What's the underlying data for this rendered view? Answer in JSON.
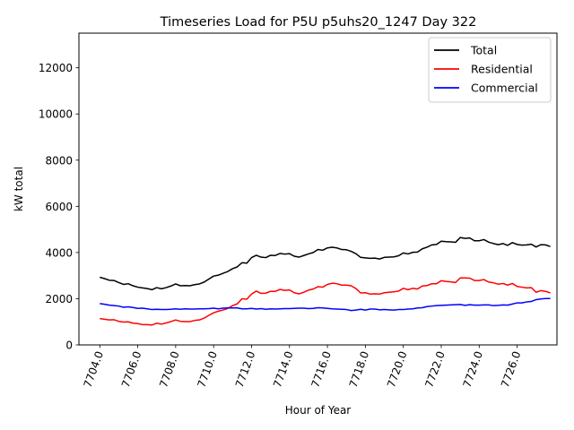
{
  "chart_data": {
    "type": "line",
    "title": "Timeseries Load for P5U p5uhs20_1247  Day 322",
    "xlabel": "Hour of Year",
    "ylabel": "kW total",
    "xlim": [
      7702.9,
      7728.1
    ],
    "ylim": [
      0,
      13500
    ],
    "xticks": [
      7704,
      7706,
      7708,
      7710,
      7712,
      7714,
      7716,
      7718,
      7720,
      7722,
      7724,
      7726
    ],
    "xtick_labels": [
      "7704.0",
      "7706.0",
      "7708.0",
      "7710.0",
      "7712.0",
      "7714.0",
      "7716.0",
      "7718.0",
      "7720.0",
      "7722.0",
      "7724.0",
      "7726.0"
    ],
    "yticks": [
      0,
      2000,
      4000,
      6000,
      8000,
      10000,
      12000
    ],
    "ytick_labels": [
      "0",
      "2000",
      "4000",
      "6000",
      "8000",
      "10000",
      "12000"
    ],
    "legend_position": "top-right",
    "x": [
      7704.0,
      7704.25,
      7704.5,
      7704.75,
      7705.0,
      7705.25,
      7705.5,
      7705.75,
      7706.0,
      7706.25,
      7706.5,
      7706.75,
      7707.0,
      7707.25,
      7707.5,
      7707.75,
      7708.0,
      7708.25,
      7708.5,
      7708.75,
      7709.0,
      7709.25,
      7709.5,
      7709.75,
      7710.0,
      7710.25,
      7710.5,
      7710.75,
      7711.0,
      7711.25,
      7711.5,
      7711.75,
      7712.0,
      7712.25,
      7712.5,
      7712.75,
      7713.0,
      7713.25,
      7713.5,
      7713.75,
      7714.0,
      7714.25,
      7714.5,
      7714.75,
      7715.0,
      7715.25,
      7715.5,
      7715.75,
      7716.0,
      7716.25,
      7716.5,
      7716.75,
      7717.0,
      7717.25,
      7717.5,
      7717.75,
      7718.0,
      7718.25,
      7718.5,
      7718.75,
      7719.0,
      7719.25,
      7719.5,
      7719.75,
      7720.0,
      7720.25,
      7720.5,
      7720.75,
      7721.0,
      7721.25,
      7721.5,
      7721.75,
      7722.0,
      7722.25,
      7722.5,
      7722.75,
      7723.0,
      7723.25,
      7723.5,
      7723.75,
      7724.0,
      7724.25,
      7724.5,
      7724.75,
      7725.0,
      7725.25,
      7725.5,
      7725.75,
      7726.0,
      7726.25,
      7726.5,
      7726.75,
      7727.0,
      7727.25,
      7727.5,
      7727.75
    ],
    "series": [
      {
        "name": "Total",
        "color": "#000000",
        "values": [
          2930,
          2870,
          2800,
          2790,
          2700,
          2620,
          2650,
          2560,
          2500,
          2470,
          2440,
          2390,
          2480,
          2430,
          2480,
          2550,
          2640,
          2560,
          2570,
          2560,
          2610,
          2640,
          2720,
          2850,
          2980,
          3020,
          3100,
          3180,
          3300,
          3380,
          3560,
          3540,
          3780,
          3880,
          3800,
          3780,
          3880,
          3870,
          3960,
          3930,
          3950,
          3840,
          3800,
          3870,
          3940,
          4000,
          4130,
          4100,
          4200,
          4230,
          4200,
          4130,
          4120,
          4050,
          3950,
          3790,
          3770,
          3750,
          3760,
          3720,
          3790,
          3800,
          3810,
          3860,
          3980,
          3940,
          4010,
          4020,
          4160,
          4230,
          4330,
          4350,
          4490,
          4470,
          4460,
          4440,
          4650,
          4610,
          4630,
          4510,
          4510,
          4560,
          4450,
          4390,
          4340,
          4390,
          4310,
          4430,
          4350,
          4320,
          4330,
          4360,
          4240,
          4340,
          4330,
          4260
        ]
      },
      {
        "name": "Residential",
        "color": "#ff0000",
        "values": [
          1140,
          1110,
          1080,
          1090,
          1020,
          990,
          1000,
          940,
          920,
          880,
          880,
          860,
          940,
          900,
          950,
          1010,
          1080,
          1020,
          1010,
          1010,
          1060,
          1080,
          1160,
          1280,
          1390,
          1460,
          1510,
          1580,
          1700,
          1780,
          2000,
          1980,
          2200,
          2330,
          2230,
          2240,
          2320,
          2320,
          2400,
          2360,
          2380,
          2260,
          2210,
          2280,
          2370,
          2420,
          2520,
          2500,
          2620,
          2670,
          2650,
          2590,
          2590,
          2560,
          2440,
          2250,
          2260,
          2200,
          2210,
          2200,
          2260,
          2280,
          2300,
          2330,
          2450,
          2390,
          2450,
          2420,
          2550,
          2570,
          2650,
          2650,
          2780,
          2750,
          2730,
          2700,
          2900,
          2900,
          2890,
          2790,
          2790,
          2830,
          2720,
          2690,
          2630,
          2660,
          2590,
          2660,
          2530,
          2500,
          2470,
          2480,
          2280,
          2350,
          2320,
          2250
        ]
      },
      {
        "name": "Commercial",
        "color": "#0000ff",
        "values": [
          1790,
          1760,
          1720,
          1700,
          1680,
          1630,
          1650,
          1620,
          1580,
          1590,
          1560,
          1530,
          1540,
          1530,
          1530,
          1540,
          1560,
          1540,
          1560,
          1550,
          1550,
          1560,
          1560,
          1570,
          1590,
          1560,
          1590,
          1600,
          1600,
          1600,
          1560,
          1560,
          1580,
          1550,
          1570,
          1540,
          1560,
          1550,
          1560,
          1570,
          1570,
          1580,
          1590,
          1590,
          1570,
          1580,
          1610,
          1600,
          1580,
          1560,
          1550,
          1540,
          1530,
          1490,
          1510,
          1540,
          1510,
          1550,
          1550,
          1520,
          1530,
          1520,
          1510,
          1530,
          1530,
          1550,
          1560,
          1600,
          1610,
          1660,
          1680,
          1700,
          1710,
          1720,
          1730,
          1740,
          1750,
          1710,
          1740,
          1720,
          1720,
          1730,
          1730,
          1700,
          1710,
          1730,
          1720,
          1770,
          1820,
          1820,
          1860,
          1880,
          1960,
          1990,
          2010,
          2010
        ]
      }
    ]
  }
}
